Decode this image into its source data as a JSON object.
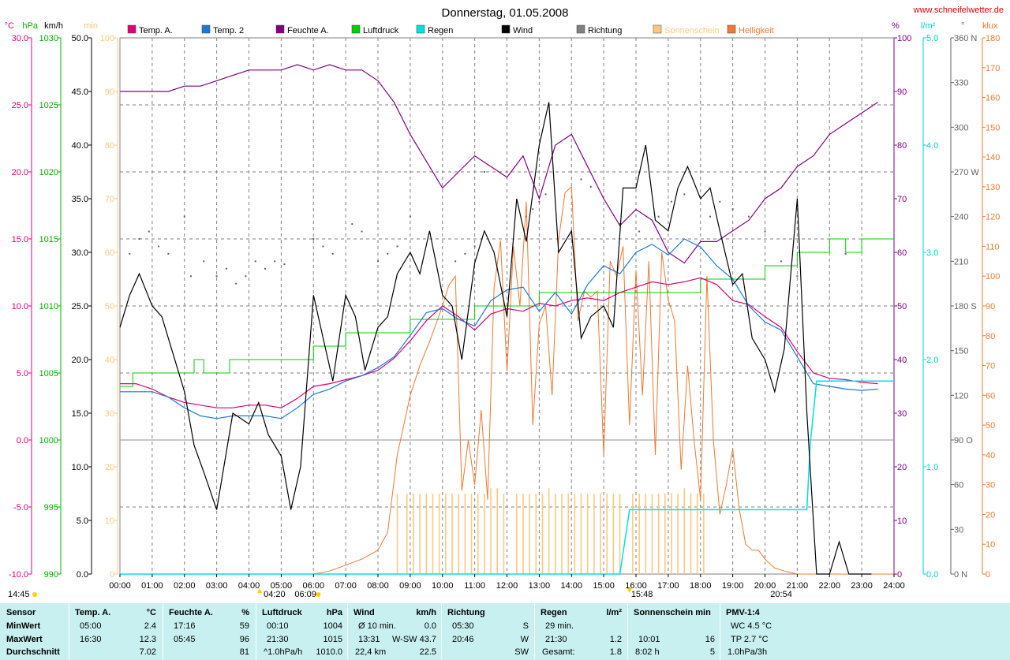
{
  "header": {
    "title": "Donnerstag, 01.05.2008",
    "site": "www.schneifelwetter.de"
  },
  "chart_data": {
    "type": "line",
    "title": "Donnerstag, 01.05.2008",
    "units": {
      "temp": "°C",
      "pressure": "hPa",
      "wind": "km/h",
      "sun": "min",
      "humidity": "%",
      "rain": "l/m²",
      "dir": "°",
      "light": "klux"
    },
    "legend": [
      {
        "name": "Temp. A.",
        "color": "#e0007a"
      },
      {
        "name": "Temp. 2",
        "color": "#1a7ad8"
      },
      {
        "name": "Feuchte A.",
        "color": "#800080"
      },
      {
        "name": "Luftdruck",
        "color": "#00d000"
      },
      {
        "name": "Regen",
        "color": "#00e0e0"
      },
      {
        "name": "Wind",
        "color": "#000000"
      },
      {
        "name": "Richtung",
        "color": "#808080"
      },
      {
        "name": "Sonnenschein",
        "color": "#ffc880"
      },
      {
        "name": "Helligkeit",
        "color": "#f07830"
      }
    ],
    "axes": {
      "temp": {
        "label": "°C",
        "min": -10,
        "max": 30,
        "ticks": [
          "30.0",
          "25.0",
          "20.0",
          "15.0",
          "10.0",
          "5.0",
          "0.0",
          "-5.0",
          "-10.0"
        ],
        "color": "#e0007a"
      },
      "pressure": {
        "label": "hPa",
        "min": 990,
        "max": 1030,
        "ticks": [
          "1030",
          "1025",
          "1020",
          "1015",
          "1010",
          "1005",
          "1000",
          "995",
          "990"
        ],
        "color": "#00b000"
      },
      "wind": {
        "label": "km/h",
        "min": 0,
        "max": 50,
        "ticks": [
          "50.0",
          "45.0",
          "40.0",
          "35.0",
          "30.0",
          "25.0",
          "20.0",
          "15.0",
          "10.0",
          "5.0",
          "0.0"
        ],
        "color": "#000000"
      },
      "sun": {
        "label": "min",
        "min": 0,
        "max": 100,
        "ticks": [
          "100",
          "90",
          "80",
          "70",
          "60",
          "50",
          "40",
          "30",
          "20",
          "10",
          "0"
        ],
        "color": "#ffc880"
      },
      "humidity": {
        "label": "%",
        "min": 0,
        "max": 100,
        "ticks": [
          "100",
          "90",
          "80",
          "70",
          "60",
          "50",
          "40",
          "30",
          "20",
          "10",
          "0"
        ],
        "color": "#800080"
      },
      "rain": {
        "label": "l/m²",
        "min": 0,
        "max": 5,
        "ticks": [
          "5.0",
          "4.0",
          "3.0",
          "2.0",
          "1.0",
          "0.0"
        ],
        "color": "#00d0d0"
      },
      "dir": {
        "label": "°",
        "min": 0,
        "max": 360,
        "ticks": [
          "360 N",
          "330",
          "300",
          "270 W",
          "240",
          "210",
          "180 S",
          "150",
          "120",
          "90 O",
          "60",
          "30",
          "0 N"
        ],
        "color": "#606060"
      },
      "light": {
        "label": "klux",
        "min": 0,
        "max": 180,
        "ticks": [
          "180",
          "170",
          "160",
          "150",
          "140",
          "130",
          "120",
          "110",
          "100",
          "90",
          "80",
          "70",
          "60",
          "50",
          "40",
          "30",
          "20",
          "10",
          "0"
        ],
        "color": "#f07830"
      }
    },
    "x_ticks": [
      "00:00",
      "01:00",
      "02:00",
      "03:00",
      "04:00",
      "05:00",
      "06:00",
      "07:00",
      "08:00",
      "09:00",
      "10:00",
      "11:00",
      "12:00",
      "13:00",
      "14:00",
      "15:00",
      "16:00",
      "17:00",
      "18:00",
      "19:00",
      "20:00",
      "21:00",
      "22:00",
      "23:00",
      "24:00"
    ],
    "x_range": [
      0,
      24
    ],
    "annotations": {
      "left_time": "14:45",
      "sunrise_a": "04:20",
      "sunrise_b": "06:09",
      "sunset_a": "15:48",
      "sunset_b": "20:54"
    },
    "series": [
      {
        "name": "Temp. A.",
        "axis": "temp",
        "x": [
          0,
          0.5,
          1,
          1.5,
          2,
          2.5,
          3,
          3.5,
          4,
          4.5,
          5,
          5.5,
          6,
          6.5,
          7,
          7.5,
          8,
          8.5,
          9,
          9.5,
          10,
          10.5,
          11,
          11.5,
          12,
          12.5,
          13,
          13.5,
          14,
          14.5,
          15,
          15.5,
          16,
          16.5,
          17,
          17.5,
          18,
          18.5,
          19,
          19.5,
          20,
          20.5,
          21,
          21.5,
          22,
          22.5,
          23,
          23.5
        ],
        "y": [
          4.2,
          4.2,
          3.8,
          3.2,
          2.8,
          2.6,
          2.4,
          2.4,
          2.6,
          2.6,
          2.4,
          3.1,
          4.0,
          4.2,
          4.5,
          4.8,
          5.2,
          6.1,
          7.4,
          8.9,
          10.0,
          9.2,
          8.2,
          9.4,
          9.8,
          9.6,
          10.2,
          10.0,
          10.4,
          10.6,
          10.4,
          11.0,
          11.4,
          11.8,
          11.6,
          11.8,
          12.1,
          11.6,
          10.4,
          10.1,
          9.2,
          8.4,
          6.6,
          5.0,
          4.6,
          4.5,
          4.3,
          4.2
        ]
      },
      {
        "name": "Temp. 2",
        "axis": "temp",
        "x": [
          0,
          0.5,
          1,
          1.5,
          2,
          2.5,
          3,
          3.5,
          4,
          4.5,
          5,
          5.5,
          6,
          6.5,
          7,
          7.5,
          8,
          8.5,
          9,
          9.5,
          10,
          10.5,
          11,
          11.5,
          12,
          12.5,
          13,
          13.5,
          14,
          14.5,
          15,
          15.5,
          16,
          16.5,
          17,
          17.5,
          18,
          18.5,
          19,
          19.5,
          20,
          20.5,
          21,
          21.5,
          22,
          22.5,
          23,
          23.5
        ],
        "y": [
          3.6,
          3.6,
          3.6,
          3.2,
          2.4,
          1.8,
          1.6,
          1.8,
          1.8,
          1.8,
          1.6,
          2.4,
          3.4,
          3.8,
          4.4,
          4.8,
          5.4,
          6.2,
          7.8,
          9.5,
          9.8,
          9.0,
          8.5,
          10.4,
          11.2,
          11.4,
          9.6,
          11.0,
          9.4,
          11.6,
          13.0,
          12.4,
          14.0,
          14.6,
          13.8,
          15.0,
          14.4,
          13.0,
          12.0,
          10.0,
          8.8,
          8.2,
          6.2,
          4.2,
          4.0,
          3.8,
          3.7,
          3.8
        ]
      },
      {
        "name": "Feuchte A.",
        "axis": "humidity",
        "x": [
          0,
          0.5,
          1,
          1.5,
          2,
          2.5,
          3,
          3.5,
          4,
          4.5,
          5,
          5.5,
          6,
          6.5,
          7,
          7.5,
          8,
          8.5,
          9,
          9.5,
          10,
          10.5,
          11,
          11.5,
          12,
          12.5,
          13,
          13.5,
          14,
          14.5,
          15,
          15.5,
          16,
          16.5,
          17,
          17.5,
          18,
          18.5,
          19,
          19.5,
          20,
          20.5,
          21,
          21.5,
          22,
          22.5,
          23,
          23.5
        ],
        "y": [
          90,
          90,
          90,
          90,
          91,
          91,
          92,
          93,
          94,
          94,
          94,
          95,
          94,
          95,
          94,
          94,
          92,
          88,
          82,
          77,
          72,
          75,
          78,
          76,
          74,
          78,
          70,
          80,
          82,
          76,
          70,
          65,
          68,
          66,
          60,
          58,
          62,
          62,
          64,
          66,
          70,
          72,
          76,
          78,
          82,
          84,
          86,
          88
        ]
      },
      {
        "name": "Luftdruck",
        "axis": "pressure",
        "x": [
          0,
          0.4,
          1,
          2,
          2.3,
          2.6,
          3,
          3.4,
          4,
          5,
          6,
          7,
          8,
          9,
          10,
          11,
          12,
          13,
          14,
          15,
          16,
          17,
          18,
          19,
          20,
          20.5,
          21,
          21.4,
          22,
          22.5,
          23,
          24
        ],
        "y": [
          1004,
          1005,
          1005,
          1005,
          1006,
          1005,
          1005,
          1006,
          1006,
          1006,
          1007,
          1008,
          1008,
          1009,
          1009,
          1010,
          1010,
          1011,
          1011,
          1011,
          1011,
          1011,
          1012,
          1012,
          1013,
          1013,
          1014,
          1014,
          1015,
          1014,
          1015,
          1015
        ]
      },
      {
        "name": "Regen",
        "axis": "rain",
        "x": [
          0,
          15.5,
          15.8,
          16,
          20.5,
          21.3,
          21.4,
          21.5,
          21.6,
          22,
          23,
          24
        ],
        "y": [
          0,
          0,
          0.6,
          0.6,
          0.6,
          0.6,
          1.2,
          1.5,
          1.8,
          1.8,
          1.8,
          1.8
        ]
      },
      {
        "name": "Wind",
        "axis": "wind",
        "x": [
          0,
          0.3,
          0.6,
          1,
          1.3,
          1.6,
          2,
          2.3,
          2.6,
          3,
          3.5,
          4,
          4.3,
          4.6,
          5,
          5.3,
          5.6,
          6,
          6.3,
          6.6,
          7,
          7.3,
          7.6,
          8,
          8.3,
          8.6,
          9,
          9.3,
          9.6,
          10,
          10.3,
          10.6,
          11,
          11.3,
          11.6,
          12,
          12.3,
          12.6,
          13,
          13.3,
          13.6,
          14,
          14.3,
          14.6,
          15,
          15.3,
          15.6,
          16,
          16.3,
          16.6,
          17,
          17.3,
          17.6,
          18,
          18.3,
          18.6,
          19,
          19.3,
          19.6,
          20,
          20.3,
          20.6,
          21,
          21.3,
          21.6,
          22,
          22.3,
          22.6,
          23,
          23.3
        ],
        "y": [
          23,
          26,
          28,
          25,
          24,
          21,
          17,
          12,
          9.5,
          6,
          15,
          14,
          16,
          13,
          11,
          6,
          10,
          26,
          22,
          18,
          26,
          24,
          19,
          23,
          24,
          28,
          30,
          28,
          32,
          26,
          25,
          20,
          29,
          32,
          30,
          24,
          35,
          31,
          40,
          44,
          30,
          32,
          22,
          24,
          25,
          23,
          36,
          36,
          40,
          33,
          32,
          36,
          38,
          35,
          36,
          32,
          27,
          28,
          22,
          20,
          17,
          21,
          35,
          15,
          0,
          0,
          3,
          0,
          0,
          0
        ]
      },
      {
        "name": "Helligkeit",
        "axis": "light",
        "x": [
          0,
          6,
          6.5,
          7,
          7.5,
          8,
          8.3,
          8.6,
          9,
          9.3,
          9.6,
          10,
          10.2,
          10.4,
          10.6,
          10.8,
          11,
          11.2,
          11.4,
          11.6,
          11.8,
          12,
          12.2,
          12.4,
          12.6,
          12.8,
          13,
          13.2,
          13.4,
          13.6,
          13.8,
          14,
          14.2,
          14.4,
          14.6,
          14.8,
          15,
          15.2,
          15.4,
          15.6,
          15.8,
          16,
          16.2,
          16.4,
          16.6,
          16.8,
          17,
          17.2,
          17.4,
          17.6,
          17.8,
          18,
          18.2,
          18.4,
          18.6,
          18.8,
          19,
          19.2,
          19.4,
          19.6,
          19.8,
          20,
          20.3,
          20.6,
          21,
          21.5,
          24
        ],
        "y": [
          0,
          0,
          1,
          3,
          5,
          8,
          14,
          40,
          60,
          70,
          78,
          90,
          97,
          100,
          28,
          45,
          30,
          55,
          25,
          96,
          112,
          68,
          110,
          90,
          125,
          50,
          84,
          90,
          60,
          112,
          128,
          130,
          85,
          95,
          93,
          95,
          40,
          105,
          100,
          110,
          50,
          102,
          60,
          105,
          40,
          108,
          92,
          85,
          35,
          70,
          45,
          25,
          100,
          45,
          20,
          30,
          42,
          22,
          10,
          8,
          8,
          5,
          2,
          1,
          0,
          0,
          0
        ]
      },
      {
        "name": "Sonnenschein",
        "axis": "sun",
        "type": "bar",
        "x": [
          8.6,
          8.9,
          9.1,
          9.3,
          9.5,
          9.7,
          9.9,
          10.1,
          10.3,
          10.5,
          10.7,
          10.9,
          11.1,
          11.3,
          11.5,
          11.7,
          11.9,
          12.3,
          12.5,
          12.7,
          12.9,
          13.1,
          13.3,
          13.5,
          13.7,
          13.9,
          14.1,
          14.3,
          14.5,
          14.7,
          14.9,
          15.1,
          15.3,
          15.5,
          15.9,
          16.1,
          16.3,
          16.5,
          16.7,
          16.9,
          17.1,
          17.3,
          17.5,
          17.7,
          17.9,
          18.1
        ],
        "y": [
          15,
          15,
          15,
          15,
          15,
          15,
          15,
          15,
          15,
          15,
          15,
          15,
          15,
          15,
          16,
          16,
          15,
          15,
          15,
          15,
          15,
          15,
          16,
          15,
          15,
          15,
          15,
          15,
          15,
          15,
          15,
          15,
          15,
          15,
          15,
          15,
          15,
          15,
          15,
          15,
          15,
          15,
          16,
          15,
          15,
          15
        ]
      },
      {
        "name": "Richtung",
        "axis": "dir",
        "type": "scatter",
        "x": [
          0.3,
          0.6,
          0.9,
          1.2,
          1.5,
          2.0,
          2.2,
          2.6,
          3.0,
          3.3,
          3.6,
          3.9,
          4.2,
          4.5,
          4.8,
          5.1,
          6.0,
          6.3,
          6.6,
          7.2,
          7.5,
          8.0,
          8.3,
          8.6,
          9.0,
          10.4,
          10.7,
          11.0,
          11.3,
          12.6,
          12.8,
          13.0,
          13.2,
          14.3,
          14.6,
          15.5,
          16.1,
          16.7,
          17.1,
          17.5,
          18.3,
          18.6,
          19.0,
          19.5,
          20.0,
          20.5,
          21.0,
          22.5
        ],
        "y": [
          215,
          225,
          230,
          220,
          215,
          240,
          200,
          210,
          200,
          205,
          195,
          200,
          210,
          205,
          210,
          208,
          225,
          220,
          215,
          235,
          230,
          210,
          215,
          220,
          240,
          210,
          215,
          220,
          270,
          240,
          245,
          250,
          255,
          265,
          260,
          235,
          230,
          240,
          250,
          255,
          240,
          250,
          245,
          240,
          230,
          210,
          200,
          215
        ]
      }
    ]
  },
  "stats": {
    "row_labels": [
      "Sensor",
      "MinWert",
      "MaxWert",
      "Durchschnitt"
    ],
    "columns": [
      {
        "name": "Temp. A.",
        "unit": "°C",
        "min_time": "05:00",
        "min_val": "2.4",
        "max_time": "16:30",
        "max_val": "12.3",
        "avg_time": "",
        "avg_val": "7.02"
      },
      {
        "name": "Feuchte A.",
        "unit": "%",
        "min_time": "17:16",
        "min_val": "59",
        "max_time": "05:45",
        "max_val": "96",
        "avg_time": "",
        "avg_val": "81"
      },
      {
        "name": "Luftdruck",
        "unit": "hPa",
        "min_time": "00:10",
        "min_val": "1004",
        "max_time": "21:30",
        "max_val": "1015",
        "avg_time": "^1.0hPa/h",
        "avg_val": "1010.0"
      },
      {
        "name": "Wind",
        "unit": "km/h",
        "min_time": "Ø 10 min.",
        "min_val": "0.0",
        "max_time": "13:31",
        "max_val": "W-SW 43.7",
        "avg_time": "22,4 km",
        "avg_val": "22.5"
      },
      {
        "name": "Richtung",
        "unit": "",
        "min_time": "05:30",
        "min_val": "S",
        "max_time": "20:46",
        "max_val": "W",
        "avg_time": "",
        "avg_val": "SW"
      },
      {
        "name": "Regen",
        "unit": "l/m²",
        "min_time": "29 min.",
        "min_val": "",
        "max_time": "21:30",
        "max_val": "1.2",
        "avg_time": "Gesamt:",
        "avg_val": "1.8"
      },
      {
        "name": "Sonnenschein min",
        "unit": "",
        "min_time": "",
        "min_val": "",
        "max_time": "10:01",
        "max_val": "16",
        "avg_time": "8:02 h",
        "avg_val": "5"
      },
      {
        "name": "PMV-1:4",
        "unit": "",
        "min_time": "WC 4.5 °C",
        "min_val": "",
        "max_time": "TP 2.7 °C",
        "max_val": "",
        "avg_time": "1.0hPa/3h",
        "avg_val": ""
      }
    ]
  }
}
